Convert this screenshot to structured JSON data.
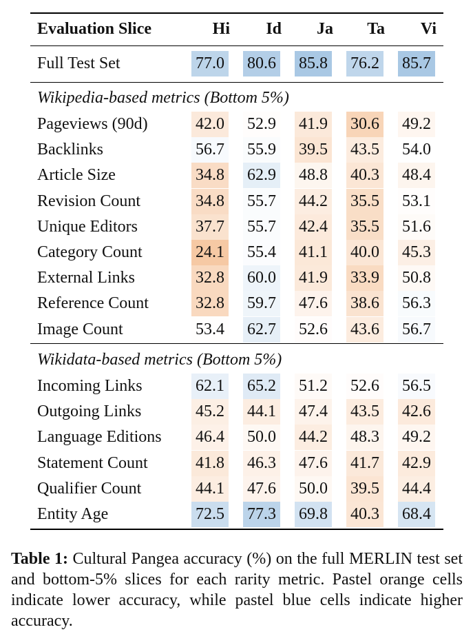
{
  "table": {
    "header": {
      "slice_label": "Evaluation Slice",
      "columns": [
        "Hi",
        "Id",
        "Ja",
        "Ta",
        "Vi"
      ]
    },
    "full_row": {
      "label": "Full Test Set",
      "values": [
        "77.0",
        "80.6",
        "85.8",
        "76.2",
        "85.7"
      ]
    },
    "sections": [
      {
        "title": "Wikipedia-based metrics (Bottom 5%)",
        "rows": [
          {
            "label": "Pageviews (90d)",
            "values": [
              "42.0",
              "52.9",
              "41.9",
              "30.6",
              "49.2"
            ]
          },
          {
            "label": "Backlinks",
            "values": [
              "56.7",
              "55.9",
              "39.5",
              "43.5",
              "54.0"
            ]
          },
          {
            "label": "Article Size",
            "values": [
              "34.8",
              "62.9",
              "48.8",
              "40.3",
              "48.4"
            ]
          },
          {
            "label": "Revision Count",
            "values": [
              "34.8",
              "55.7",
              "44.2",
              "35.5",
              "53.1"
            ]
          },
          {
            "label": "Unique Editors",
            "values": [
              "37.7",
              "55.7",
              "42.4",
              "35.5",
              "51.6"
            ]
          },
          {
            "label": "Category Count",
            "values": [
              "24.1",
              "55.4",
              "41.1",
              "40.0",
              "45.3"
            ]
          },
          {
            "label": "External Links",
            "values": [
              "32.8",
              "60.0",
              "41.9",
              "33.9",
              "50.8"
            ]
          },
          {
            "label": "Reference Count",
            "values": [
              "32.8",
              "59.7",
              "47.6",
              "38.6",
              "56.3"
            ]
          },
          {
            "label": "Image Count",
            "values": [
              "53.4",
              "62.7",
              "52.6",
              "43.6",
              "56.7"
            ]
          }
        ]
      },
      {
        "title": "Wikidata-based metrics (Bottom 5%)",
        "rows": [
          {
            "label": "Incoming Links",
            "values": [
              "62.1",
              "65.2",
              "51.2",
              "52.6",
              "56.5"
            ]
          },
          {
            "label": "Outgoing Links",
            "values": [
              "45.2",
              "44.1",
              "47.4",
              "43.5",
              "42.6"
            ]
          },
          {
            "label": "Language Editions",
            "values": [
              "46.4",
              "50.0",
              "44.2",
              "48.3",
              "49.2"
            ]
          },
          {
            "label": "Statement Count",
            "values": [
              "41.8",
              "46.3",
              "47.6",
              "41.7",
              "42.9"
            ]
          },
          {
            "label": "Qualifier Count",
            "values": [
              "44.1",
              "47.6",
              "50.0",
              "39.5",
              "44.4"
            ]
          },
          {
            "label": "Entity Age",
            "values": [
              "72.5",
              "77.3",
              "69.8",
              "40.3",
              "68.4"
            ]
          }
        ]
      }
    ],
    "colors": {
      "low": "#f6c9a4",
      "high": "#a9c8e4"
    }
  },
  "caption": {
    "label": "Table 1:",
    "text": " Cultural Pangea accuracy (%) on the full MERLIN test set and bottom-5% slices for each rarity metric. Pastel orange cells indicate lower accuracy, while pastel blue cells indicate higher accuracy."
  }
}
